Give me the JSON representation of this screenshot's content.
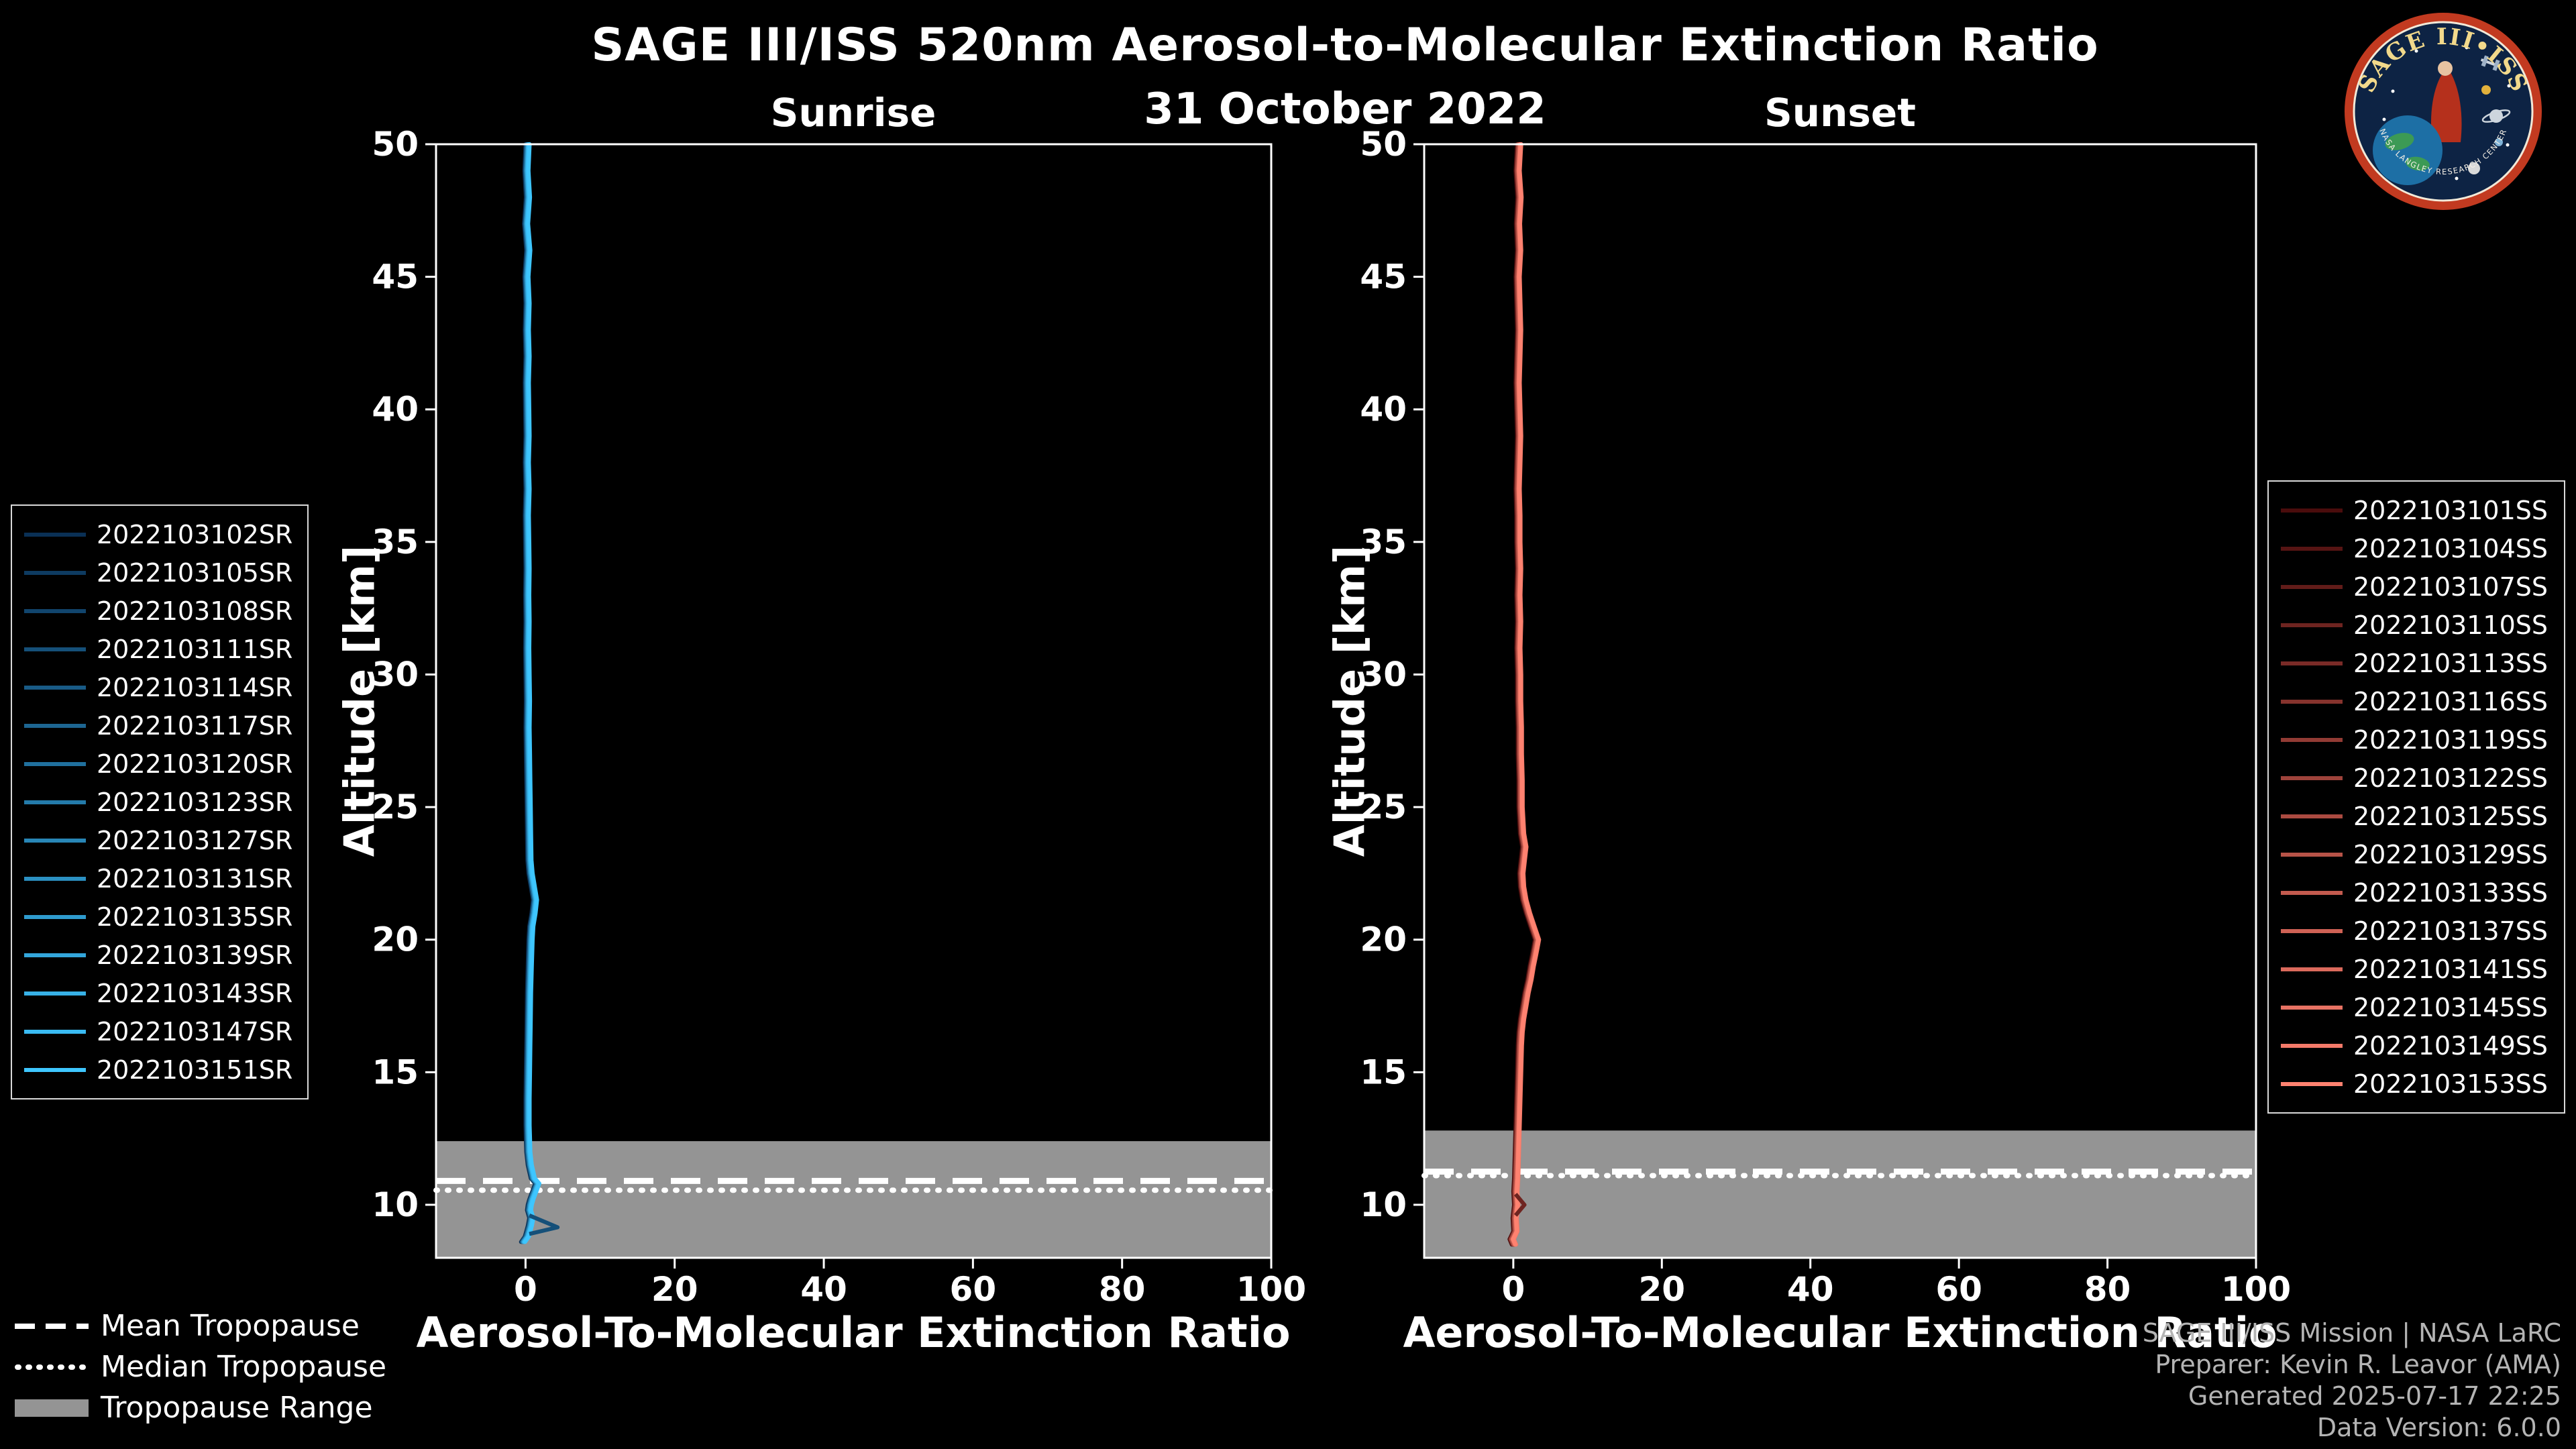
{
  "header": {
    "title": "SAGE III/ISS 520nm Aerosol-to-Molecular Extinction Ratio",
    "date": "31 October 2022"
  },
  "colors": {
    "background": "#000000",
    "text": "#ffffff",
    "tropopause_band": "#949494",
    "tropopause_line": "#ffffff",
    "credits_text": "#b4b4b4",
    "sunrise_accent": "#3EC6FF",
    "sunset_accent": "#FF8270"
  },
  "chart_data": [
    {
      "id": "sunrise",
      "type": "line",
      "title": "Sunrise",
      "xlabel": "Aerosol-To-Molecular Extinction Ratio",
      "ylabel": "Altitude [km]",
      "xlim": [
        -12,
        100
      ],
      "ylim": [
        8,
        50
      ],
      "xticks": [
        0,
        20,
        40,
        60,
        80,
        100
      ],
      "yticks": [
        10,
        15,
        20,
        25,
        30,
        35,
        40,
        45,
        50
      ],
      "grid": false,
      "legend_position": "left-outside",
      "tropopause": {
        "mean_km": 10.9,
        "median_km": 10.55,
        "range_km": [
          8,
          12.4
        ]
      },
      "profile_altitude_km": [
        50,
        49,
        48,
        47,
        46,
        45,
        44,
        43,
        42,
        41,
        40,
        39,
        38,
        37,
        36,
        35,
        34,
        33,
        32,
        31,
        30,
        29,
        28,
        27,
        26,
        25,
        24,
        23,
        22.5,
        22,
        21.5,
        21,
        20.5,
        20,
        19,
        18,
        17,
        16,
        15,
        14,
        13,
        12.5,
        12,
        11.5,
        11,
        10.8,
        10.5,
        10.2,
        10,
        9.8,
        9.5,
        9.2,
        9,
        8.8,
        8.6
      ],
      "profile_ratio": [
        0.3,
        0.15,
        0.35,
        0.1,
        0.4,
        0.15,
        0.3,
        0.2,
        0.3,
        0.2,
        0.25,
        0.3,
        0.2,
        0.3,
        0.2,
        0.25,
        0.3,
        0.25,
        0.3,
        0.25,
        0.3,
        0.35,
        0.3,
        0.35,
        0.4,
        0.45,
        0.5,
        0.55,
        0.7,
        1.0,
        1.3,
        1.1,
        0.8,
        0.7,
        0.6,
        0.5,
        0.45,
        0.4,
        0.35,
        0.3,
        0.3,
        0.35,
        0.4,
        0.6,
        1.0,
        1.6,
        1.2,
        0.8,
        0.6,
        0.5,
        0.8,
        0.6,
        0.4,
        0.2,
        -0.3
      ],
      "series": [
        {
          "name": "2022103102SR",
          "color": "#0A3055",
          "offset": -0.3
        },
        {
          "name": "2022103105SR",
          "color": "#0E3B61",
          "offset": -0.22
        },
        {
          "name": "2022103108SR",
          "color": "#11456D",
          "offset": -0.15
        },
        {
          "name": "2022103111SR",
          "color": "#155079",
          "offset": -0.1
        },
        {
          "name": "2022103114SR",
          "color": "#195B86",
          "offset": -0.18
        },
        {
          "name": "2022103117SR",
          "color": "#1D6692",
          "offset": -0.05
        },
        {
          "name": "2022103120SR",
          "color": "#20709E",
          "offset": 0.0
        },
        {
          "name": "2022103123SR",
          "color": "#247BAA",
          "offset": 0.06
        },
        {
          "name": "2022103127SR",
          "color": "#2886B6",
          "offset": -0.08
        },
        {
          "name": "2022103131SR",
          "color": "#2B90C2",
          "offset": 0.1
        },
        {
          "name": "2022103135SR",
          "color": "#2F9BCE",
          "offset": 0.15
        },
        {
          "name": "2022103139SR",
          "color": "#33A6DB",
          "offset": 0.04
        },
        {
          "name": "2022103143SR",
          "color": "#37B1E7",
          "offset": 0.2
        },
        {
          "name": "2022103147SR",
          "color": "#3ABBF3",
          "offset": 0.12
        },
        {
          "name": "2022103151SR",
          "color": "#3EC6FF",
          "offset": 0.25
        }
      ],
      "extra_segments": [
        {
          "color": "#155079",
          "altitude_km": [
            9.6,
            9.15,
            8.9
          ],
          "ratio": [
            0.5,
            4.3,
            0.5
          ]
        }
      ]
    },
    {
      "id": "sunset",
      "type": "line",
      "title": "Sunset",
      "xlabel": "Aerosol-To-Molecular Extinction Ratio",
      "ylabel": "Altitude [km]",
      "xlim": [
        -12,
        100
      ],
      "ylim": [
        8,
        50
      ],
      "xticks": [
        0,
        20,
        40,
        60,
        80,
        100
      ],
      "yticks": [
        10,
        15,
        20,
        25,
        30,
        35,
        40,
        45,
        50
      ],
      "grid": false,
      "legend_position": "right-outside",
      "tropopause": {
        "mean_km": 11.25,
        "median_km": 11.1,
        "range_km": [
          8,
          12.8
        ]
      },
      "profile_altitude_km": [
        50,
        49,
        48,
        47,
        46,
        45,
        44,
        43,
        42,
        41,
        40,
        39,
        38,
        37,
        36,
        35,
        34,
        33,
        32,
        31,
        30,
        29,
        28,
        27,
        26,
        25,
        24,
        23.5,
        23,
        22.5,
        22,
        21.5,
        21,
        20.5,
        20,
        19.7,
        19.4,
        19,
        18.5,
        18,
        17.5,
        17,
        16.5,
        16,
        15,
        14,
        13,
        12,
        11,
        10.5,
        10,
        9.5,
        9,
        8.7,
        8.5
      ],
      "profile_ratio": [
        0.8,
        0.6,
        0.85,
        0.65,
        0.8,
        0.6,
        0.7,
        0.8,
        0.7,
        0.6,
        0.7,
        0.8,
        0.7,
        0.6,
        0.7,
        0.7,
        0.8,
        0.7,
        0.8,
        0.7,
        0.8,
        0.8,
        0.9,
        0.9,
        1.0,
        1.0,
        1.2,
        1.5,
        1.3,
        1.1,
        1.2,
        1.5,
        2.0,
        2.6,
        3.2,
        3.0,
        2.8,
        2.5,
        2.2,
        1.8,
        1.5,
        1.2,
        1.0,
        0.9,
        0.8,
        0.7,
        0.6,
        0.5,
        0.4,
        0.3,
        0.4,
        0.2,
        0.3,
        -0.2,
        0.1
      ],
      "series": [
        {
          "name": "2022103101SS",
          "color": "#4A0C0C",
          "offset": -0.3
        },
        {
          "name": "2022103104SS",
          "color": "#561413",
          "offset": -0.24
        },
        {
          "name": "2022103107SS",
          "color": "#621C19",
          "offset": -0.18
        },
        {
          "name": "2022103110SS",
          "color": "#6E2420",
          "offset": -0.12
        },
        {
          "name": "2022103113SS",
          "color": "#7A2B27",
          "offset": -0.06
        },
        {
          "name": "2022103116SS",
          "color": "#86332D",
          "offset": -0.15
        },
        {
          "name": "2022103119SS",
          "color": "#923B34",
          "offset": 0.0
        },
        {
          "name": "2022103122SS",
          "color": "#9E433B",
          "offset": 0.05
        },
        {
          "name": "2022103125SS",
          "color": "#AB4B41",
          "offset": -0.09
        },
        {
          "name": "2022103129SS",
          "color": "#B75348",
          "offset": 0.1
        },
        {
          "name": "2022103133SS",
          "color": "#C35B4F",
          "offset": 0.16
        },
        {
          "name": "2022103137SS",
          "color": "#CF6255",
          "offset": 0.06
        },
        {
          "name": "2022103141SS",
          "color": "#DB6A5C",
          "offset": 0.22
        },
        {
          "name": "2022103145SS",
          "color": "#E77263",
          "offset": 0.12
        },
        {
          "name": "2022103149SS",
          "color": "#F37A69",
          "offset": 0.27
        },
        {
          "name": "2022103153SS",
          "color": "#FF8270",
          "offset": 0.18
        }
      ],
      "extra_segments": [
        {
          "color": "#6E2420",
          "altitude_km": [
            10.4,
            10.0,
            9.6
          ],
          "ratio": [
            0.3,
            1.5,
            0.3
          ]
        }
      ]
    }
  ],
  "tropopause_legend": {
    "items": [
      {
        "label": "Mean Tropopause",
        "style": "dashed"
      },
      {
        "label": "Median Tropopause",
        "style": "dotted"
      },
      {
        "label": "Tropopause Range",
        "style": "band"
      }
    ]
  },
  "credits": {
    "lines": [
      "SAGE III/ISS Mission | NASA LaRC",
      "Preparer: Kevin R. Leavor (AMA)",
      "Generated 2025-07-17 22:25",
      "Data Version: 6.0.0"
    ]
  },
  "logo": {
    "arc_title": "SAGE III•ISS",
    "arc_footer": "NASA LANGLEY RESEARCH CENTER"
  }
}
